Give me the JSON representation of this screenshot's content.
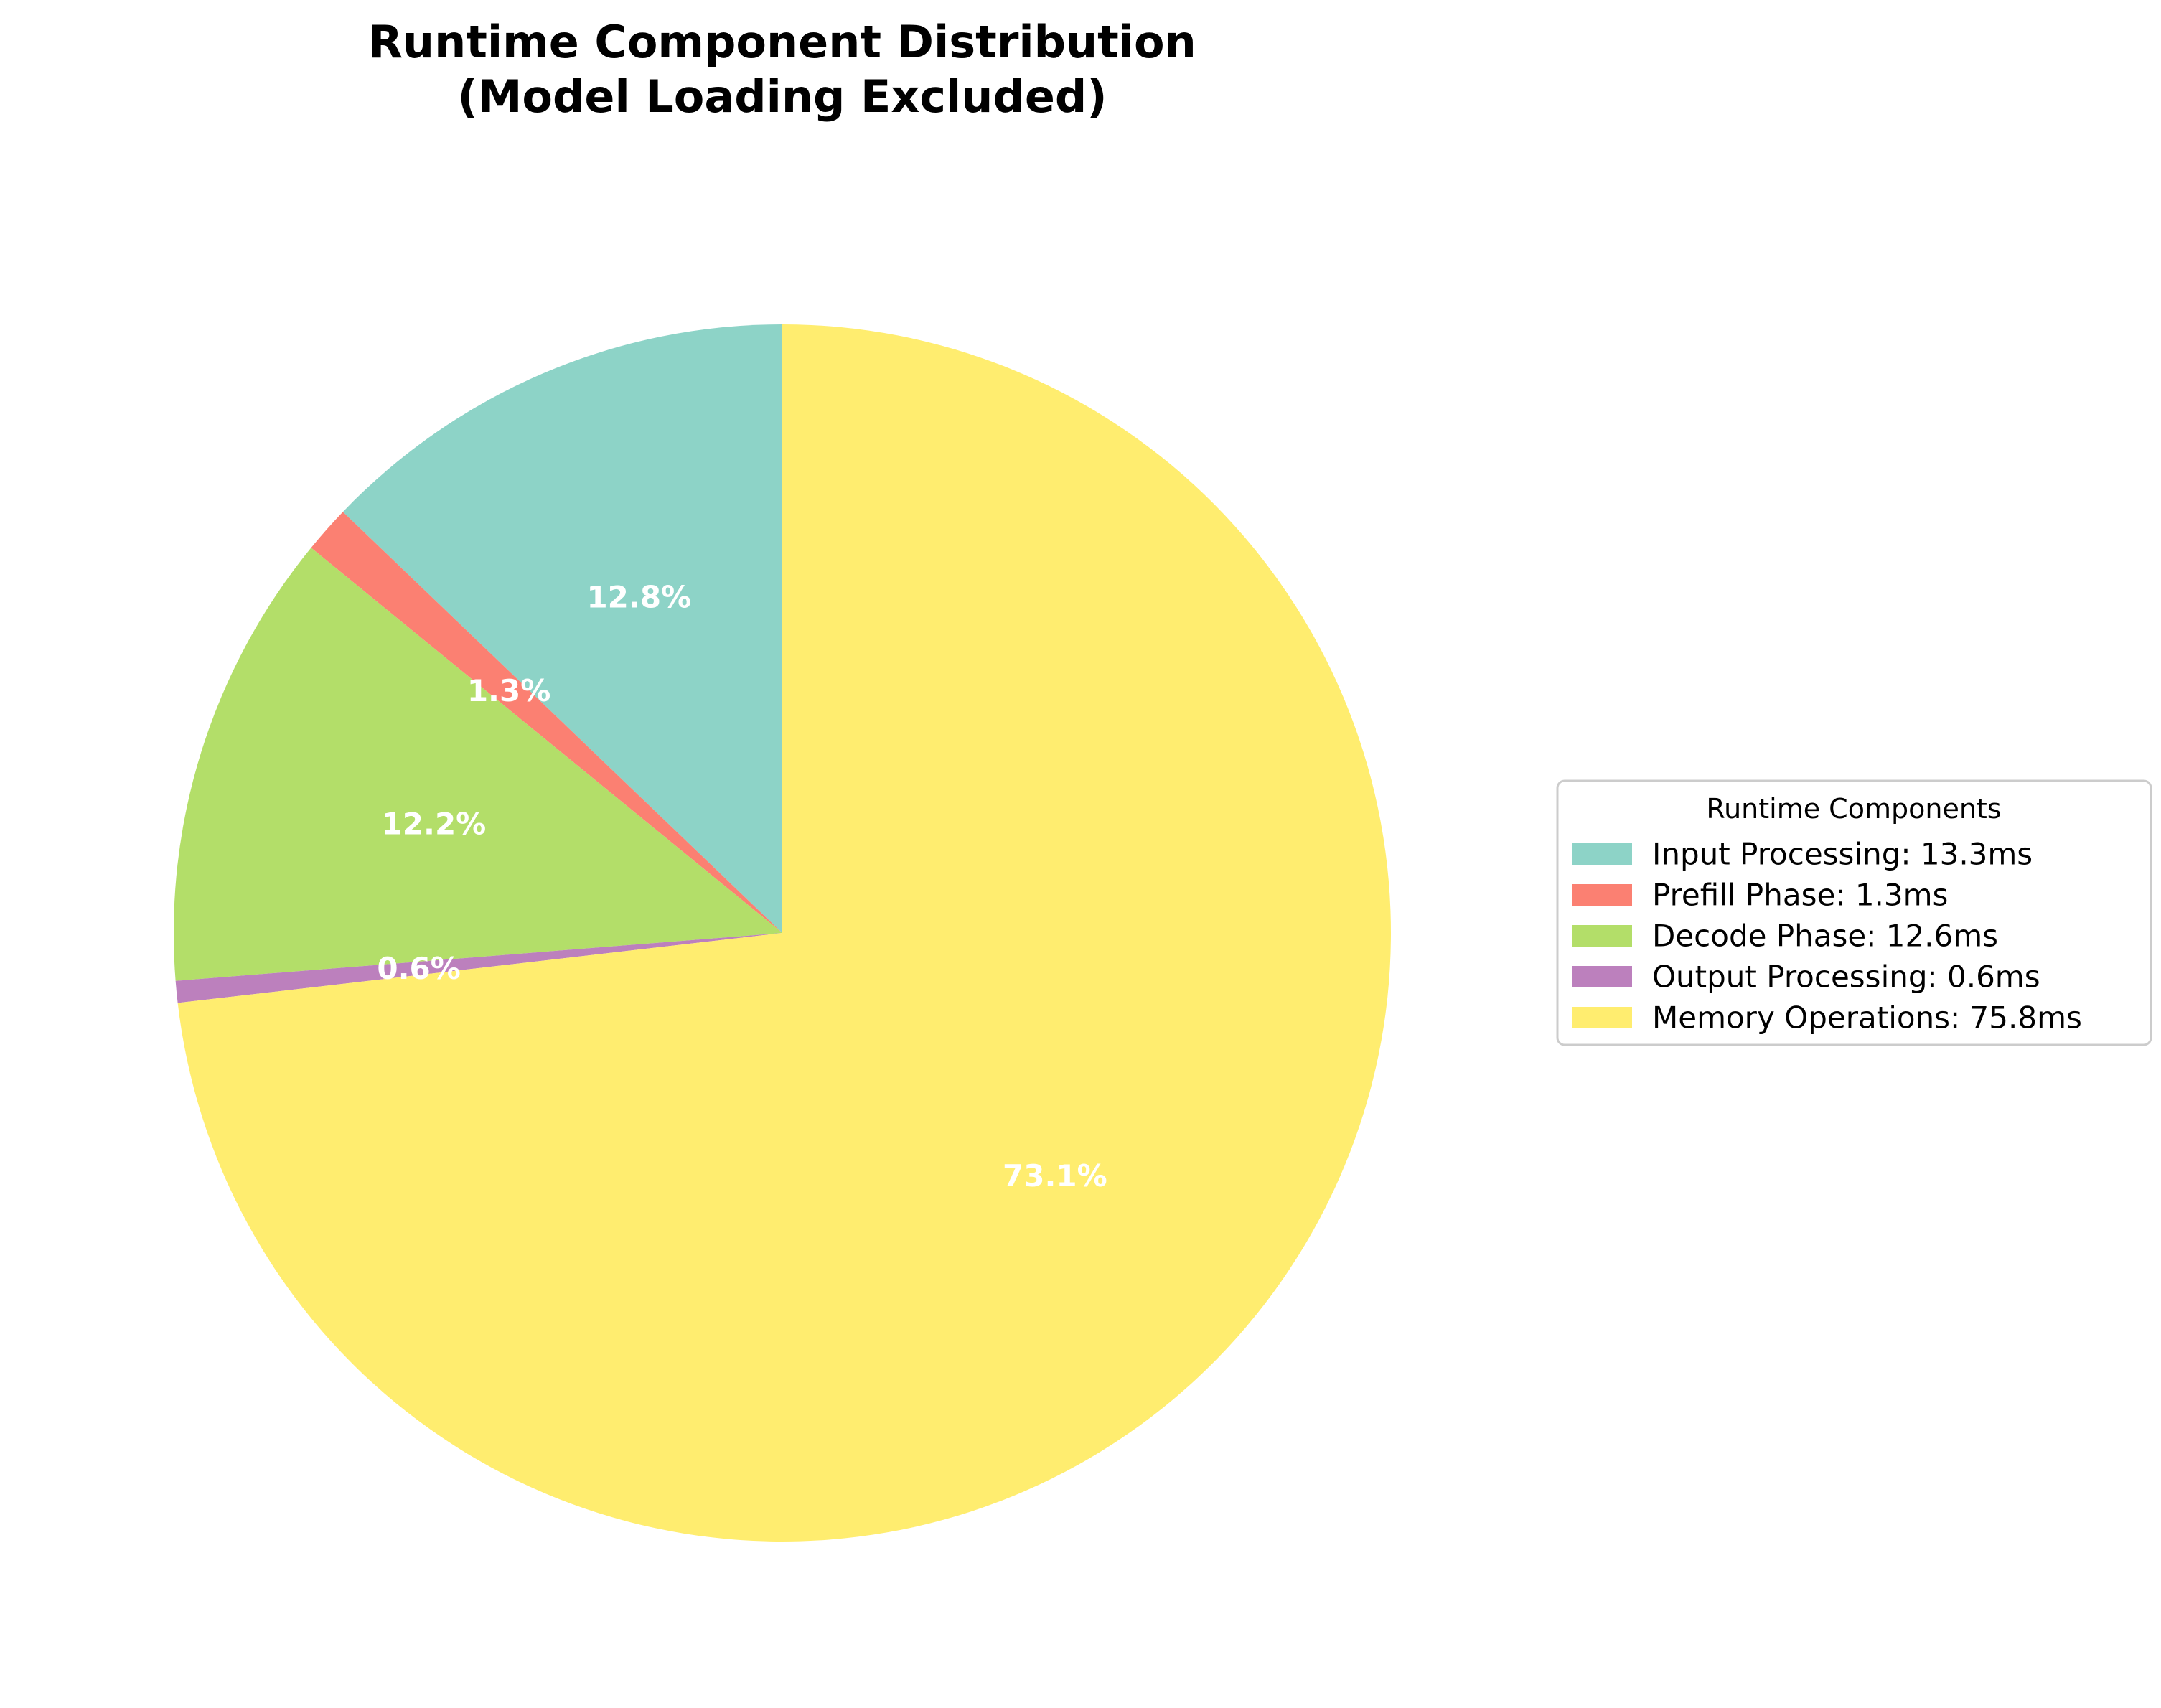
{
  "chart_data": {
    "type": "pie",
    "title_line1": "Runtime Component Distribution",
    "title_line2": "(Model Loading Excluded)",
    "legend_title": "Runtime Components",
    "legend_placement": "right",
    "start_angle_deg": 90,
    "direction": "counterclockwise",
    "slices": [
      {
        "label": "Input Processing",
        "value": 13.3,
        "unit": "ms",
        "legend": "Input Processing: 13.3ms",
        "pct_label": "12.8%",
        "color": "#8dd3c7"
      },
      {
        "label": "Prefill Phase",
        "value": 1.3,
        "unit": "ms",
        "legend": "Prefill Phase: 1.3ms",
        "pct_label": "1.3%",
        "color": "#fb8072"
      },
      {
        "label": "Decode Phase",
        "value": 12.6,
        "unit": "ms",
        "legend": "Decode Phase: 12.6ms",
        "pct_label": "12.2%",
        "color": "#b3de69"
      },
      {
        "label": "Output Processing",
        "value": 0.6,
        "unit": "ms",
        "legend": "Output Processing: 0.6ms",
        "pct_label": "0.6%",
        "color": "#bc80bd"
      },
      {
        "label": "Memory Operations",
        "value": 75.8,
        "unit": "ms",
        "legend": "Memory Operations: 75.8ms",
        "pct_label": "73.1%",
        "color": "#ffed6f"
      }
    ]
  }
}
